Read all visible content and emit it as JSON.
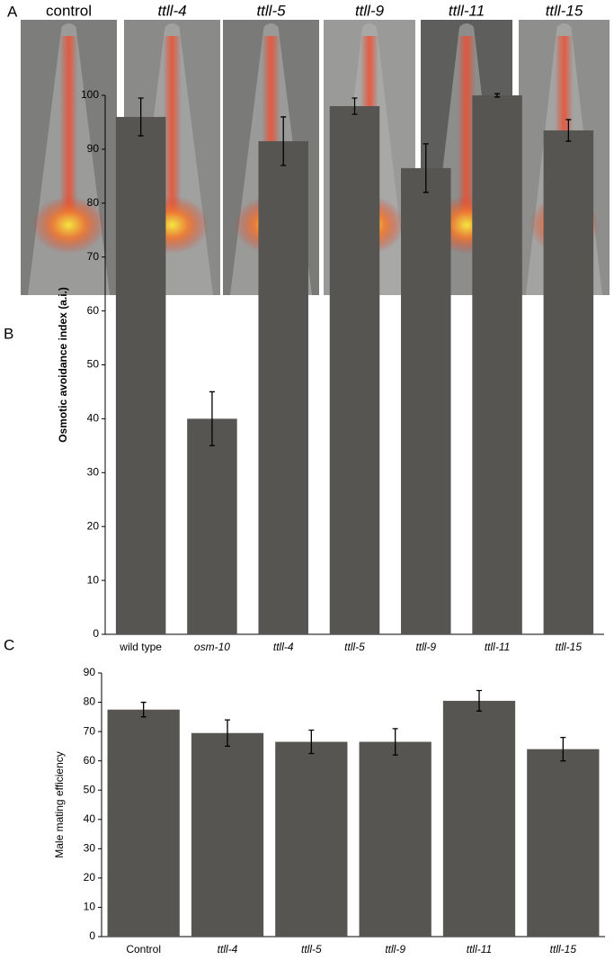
{
  "panel_labels": [
    "A",
    "B",
    "C"
  ],
  "images": {
    "labels": [
      "control",
      "ttll-4",
      "ttll-5",
      "ttll-9",
      "ttll-11",
      "ttll-15"
    ],
    "label_italic": [
      false,
      true,
      true,
      true,
      true,
      true
    ]
  },
  "chart_data": [
    {
      "type": "bar",
      "ylabel": "Osmotic avoidance index (a.i.)",
      "categories": [
        "wild type",
        "osm-10",
        "ttll-4",
        "ttll-5",
        "ttll-9",
        "ttll-11",
        "ttll-15"
      ],
      "category_italic": [
        false,
        true,
        true,
        true,
        true,
        true,
        true
      ],
      "values": [
        96,
        40,
        91.5,
        98,
        86.5,
        100,
        93.5
      ],
      "errors": [
        3.5,
        5,
        4.5,
        1.5,
        4.5,
        0.3,
        2
      ],
      "color": "#575551",
      "ylim": [
        0,
        100
      ],
      "yticks": [
        0,
        10,
        20,
        30,
        40,
        50,
        60,
        70,
        80,
        90,
        100
      ]
    },
    {
      "type": "bar",
      "ylabel": "Male mating efficiency",
      "categories": [
        "Control",
        "ttll-4",
        "ttll-5",
        "ttll-9",
        "ttll-11",
        "ttll-15"
      ],
      "category_italic": [
        false,
        true,
        true,
        true,
        true,
        true
      ],
      "values": [
        77.5,
        69.5,
        66.5,
        66.5,
        80.5,
        64
      ],
      "errors": [
        2.5,
        4.5,
        4,
        4.5,
        3.5,
        4
      ],
      "color": "#575551",
      "ylim": [
        0,
        90
      ],
      "yticks": [
        0,
        10,
        20,
        30,
        40,
        50,
        60,
        70,
        80,
        90
      ]
    }
  ]
}
